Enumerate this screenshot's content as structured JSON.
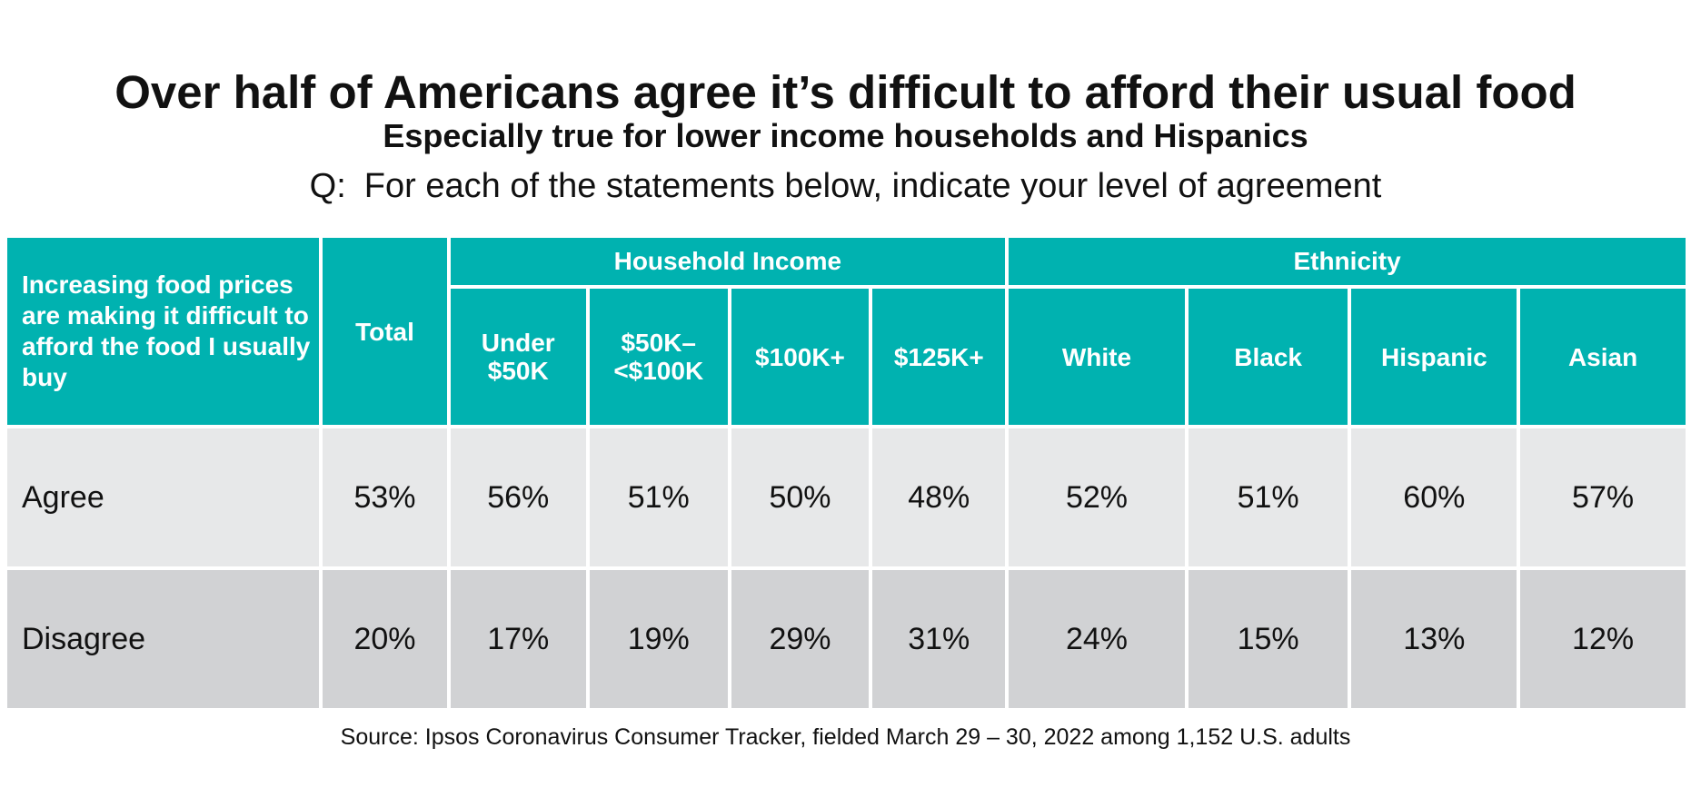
{
  "chart_data": {
    "type": "table",
    "title": "Over half of Americans agree it’s difficult to afford their usual food",
    "subtitle": "Especially true for lower income households and Hispanics",
    "question": {
      "prefix": "Q:",
      "text": "For each of the statements below, indicate your level of agreement"
    },
    "statement": "Increasing food prices are making it difficult to afford the food I usually buy",
    "total_label": "Total",
    "groups": [
      {
        "name": "Household Income",
        "columns": [
          "Under $50K",
          "$50K–<$100K",
          "$100K+",
          "$125K+"
        ]
      },
      {
        "name": "Ethnicity",
        "columns": [
          "White",
          "Black",
          "Hispanic",
          "Asian"
        ]
      }
    ],
    "columns": [
      "Total",
      "Under $50K",
      "$50K–<$100K",
      "$100K+",
      "$125K+",
      "White",
      "Black",
      "Hispanic",
      "Asian"
    ],
    "rows": [
      {
        "label": "Agree",
        "values": [
          "53%",
          "56%",
          "51%",
          "50%",
          "48%",
          "52%",
          "51%",
          "60%",
          "57%"
        ]
      },
      {
        "label": "Disagree",
        "values": [
          "20%",
          "17%",
          "19%",
          "29%",
          "31%",
          "24%",
          "15%",
          "13%",
          "12%"
        ]
      }
    ],
    "source": "Source: Ipsos Coronavirus Consumer Tracker, fielded March 29 – 30, 2022 among 1,152 U.S. adults"
  },
  "colors": {
    "header_bg": "#00b2b0",
    "header_text": "#ffffff",
    "agree_row_bg": "#e7e8e9",
    "disagree_row_bg": "#d1d2d4",
    "divider": "#000000"
  }
}
